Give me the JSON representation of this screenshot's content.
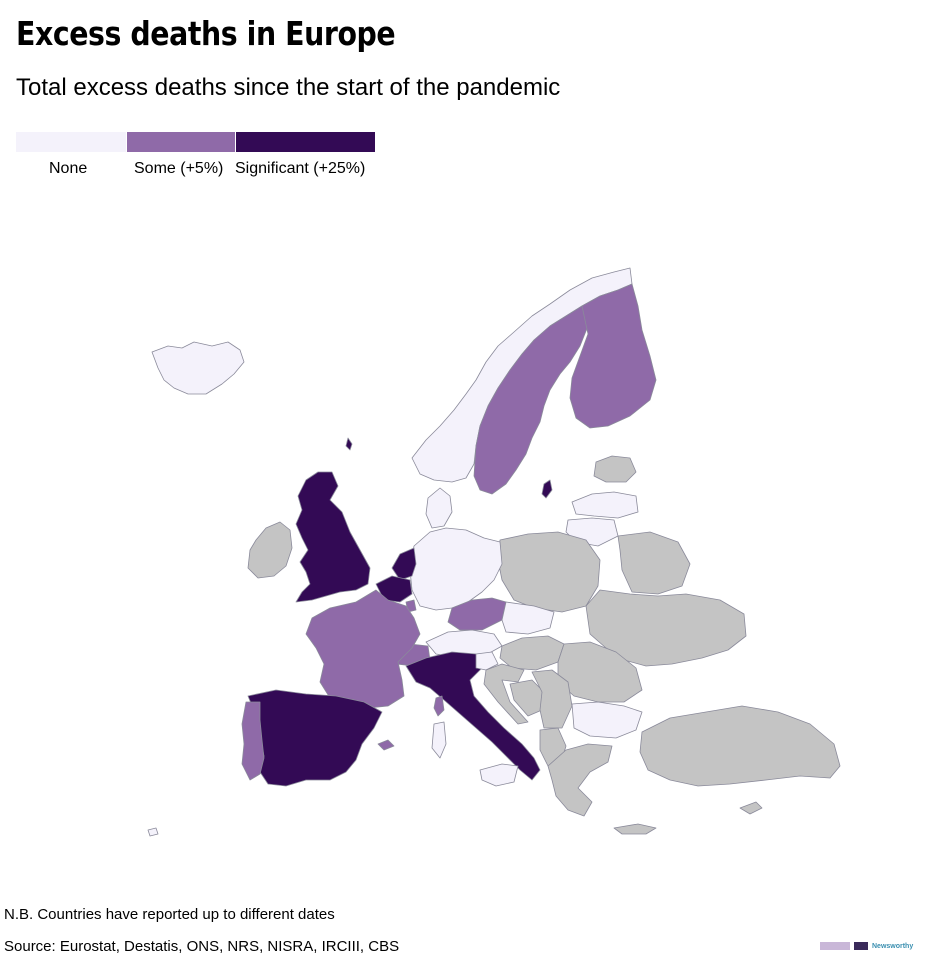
{
  "header": {
    "title": "Excess deaths in Europe",
    "subtitle": "Total excess deaths since the start of the pandemic"
  },
  "legend": {
    "items": [
      {
        "label": "None",
        "color": "#f4f2fb"
      },
      {
        "label": "Some (+5%)",
        "color": "#8f6aa8"
      },
      {
        "label": "Significant (+25%)",
        "color": "#330a55"
      }
    ],
    "no_data_color": "#c4c4c4"
  },
  "map": {
    "regions": [
      {
        "name": "Iceland",
        "category": "none"
      },
      {
        "name": "Ireland",
        "category": "no-data"
      },
      {
        "name": "United Kingdom",
        "category": "significant"
      },
      {
        "name": "Norway",
        "category": "none"
      },
      {
        "name": "Sweden",
        "category": "some"
      },
      {
        "name": "Finland",
        "category": "some"
      },
      {
        "name": "Estonia",
        "category": "no-data"
      },
      {
        "name": "Latvia",
        "category": "none"
      },
      {
        "name": "Lithuania",
        "category": "none"
      },
      {
        "name": "Denmark",
        "category": "none"
      },
      {
        "name": "Netherlands",
        "category": "significant"
      },
      {
        "name": "Belgium",
        "category": "significant"
      },
      {
        "name": "Luxembourg",
        "category": "some"
      },
      {
        "name": "Germany",
        "category": "none"
      },
      {
        "name": "Poland",
        "category": "no-data"
      },
      {
        "name": "Czechia",
        "category": "some"
      },
      {
        "name": "Slovakia",
        "category": "none"
      },
      {
        "name": "Austria",
        "category": "none"
      },
      {
        "name": "Switzerland",
        "category": "some"
      },
      {
        "name": "France",
        "category": "some"
      },
      {
        "name": "Spain",
        "category": "significant"
      },
      {
        "name": "Portugal",
        "category": "some"
      },
      {
        "name": "Italy",
        "category": "significant"
      },
      {
        "name": "Slovenia",
        "category": "none"
      },
      {
        "name": "Hungary",
        "category": "no-data"
      },
      {
        "name": "Ukraine",
        "category": "no-data"
      },
      {
        "name": "Belarus",
        "category": "no-data"
      },
      {
        "name": "Romania",
        "category": "no-data"
      },
      {
        "name": "Bulgaria",
        "category": "none"
      },
      {
        "name": "Serbia",
        "category": "no-data"
      },
      {
        "name": "Croatia",
        "category": "no-data"
      },
      {
        "name": "Bosnia",
        "category": "no-data"
      },
      {
        "name": "Albania",
        "category": "no-data"
      },
      {
        "name": "Greece",
        "category": "no-data"
      },
      {
        "name": "Turkey",
        "category": "no-data"
      },
      {
        "name": "Corsica",
        "category": "some"
      },
      {
        "name": "Sardinia",
        "category": "none"
      },
      {
        "name": "Sicily",
        "category": "none"
      },
      {
        "name": "Crete",
        "category": "no-data"
      },
      {
        "name": "Cyprus",
        "category": "no-data"
      },
      {
        "name": "Gotland",
        "category": "significant"
      },
      {
        "name": "Balearic Islands",
        "category": "some"
      }
    ]
  },
  "footer": {
    "note": "N.B. Countries have reported up to different dates",
    "source": "Source: Eurostat, Destatis, ONS, NRS, NISRA, IRCIII, CBS",
    "brand": "Newsworthy"
  }
}
